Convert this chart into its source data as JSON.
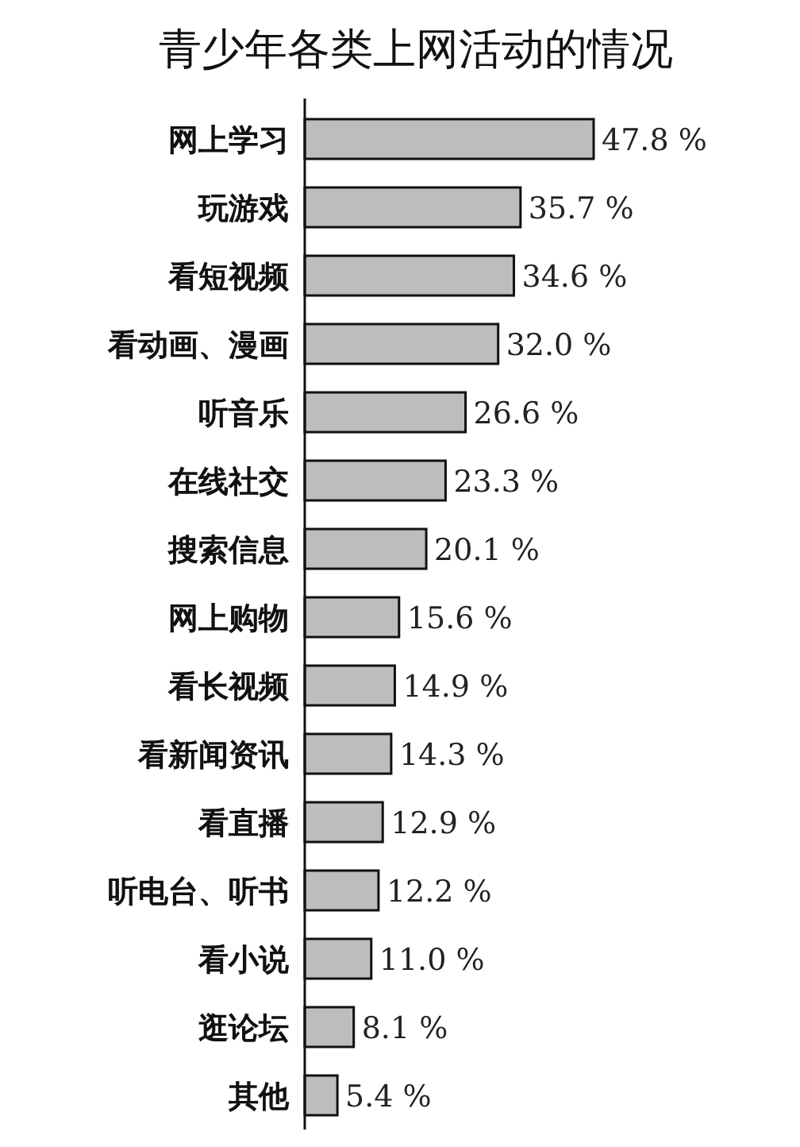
{
  "chart_data": {
    "type": "bar",
    "orientation": "horizontal",
    "title": "青少年各类上网活动的情况",
    "categories": [
      "网上学习",
      "玩游戏",
      "看短视频",
      "看动画、漫画",
      "听音乐",
      "在线社交",
      "搜索信息",
      "网上购物",
      "看长视频",
      "看新闻资讯",
      "看直播",
      "听电台、听书",
      "看小说",
      "逛论坛",
      "其他"
    ],
    "values": [
      47.8,
      35.7,
      34.6,
      32.0,
      26.6,
      23.3,
      20.1,
      15.6,
      14.9,
      14.3,
      12.9,
      12.2,
      11.0,
      8.1,
      5.4
    ],
    "value_labels": [
      "47.8 %",
      "35.7 %",
      "34.6 %",
      "32.0 %",
      "26.6 %",
      "23.3 %",
      "20.1 %",
      "15.6 %",
      "14.9 %",
      "14.3 %",
      "12.9 %",
      "12.2 %",
      "11.0 %",
      "8.1 %",
      "5.4 %"
    ],
    "color": "#bdbdbd"
  }
}
